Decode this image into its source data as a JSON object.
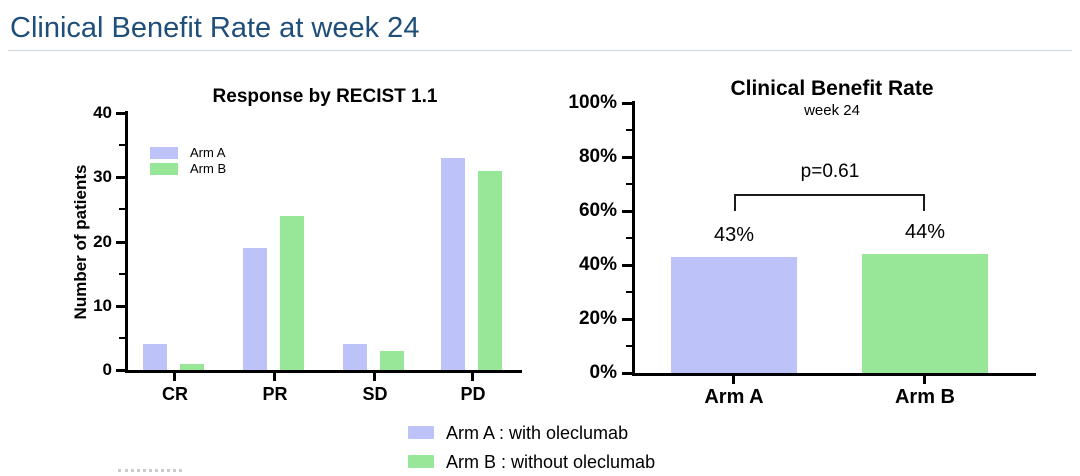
{
  "page": {
    "title": "Clinical Benefit Rate at week 24"
  },
  "colors": {
    "title_blue": "#1F4E79",
    "arm_a_fill": "#bdc3f8",
    "arm_b_fill": "#98e698",
    "axis_black": "#000000",
    "rule_gray": "#c9d6e1"
  },
  "chart_data": [
    {
      "type": "bar",
      "title": "Response by RECIST 1.1",
      "xlabel": "",
      "ylabel": "Number of patients",
      "categories": [
        "CR",
        "PR",
        "SD",
        "PD"
      ],
      "series": [
        {
          "name": "Arm A",
          "values": [
            4,
            19,
            4,
            33
          ]
        },
        {
          "name": "Arm B",
          "values": [
            1,
            24,
            3,
            31
          ]
        }
      ],
      "ylim": [
        0,
        40
      ],
      "yticks": [
        0,
        10,
        20,
        30,
        40
      ],
      "minor_yticks": [
        5,
        15,
        25,
        35
      ],
      "legend_position": "inside-top-left",
      "grid": false
    },
    {
      "type": "bar",
      "title": "Clinical Benefit Rate",
      "subtitle": "week 24",
      "xlabel": "",
      "ylabel": "",
      "categories": [
        "Arm A",
        "Arm B"
      ],
      "values": [
        43,
        44
      ],
      "value_labels": [
        "43%",
        "44%"
      ],
      "annotation": "p=0.61",
      "ylim": [
        0,
        100
      ],
      "yticks": [
        0,
        20,
        40,
        60,
        80,
        100
      ],
      "ytick_labels": [
        "0%",
        "20%",
        "40%",
        "60%",
        "80%",
        "100%"
      ],
      "minor_yticks": [
        10,
        30,
        50,
        70,
        90
      ],
      "legend_position": "none",
      "grid": false
    }
  ],
  "bottom_legend": [
    {
      "series": "Arm A",
      "label": "Arm A : with oleclumab"
    },
    {
      "series": "Arm B",
      "label": "Arm B : without oleclumab"
    }
  ]
}
